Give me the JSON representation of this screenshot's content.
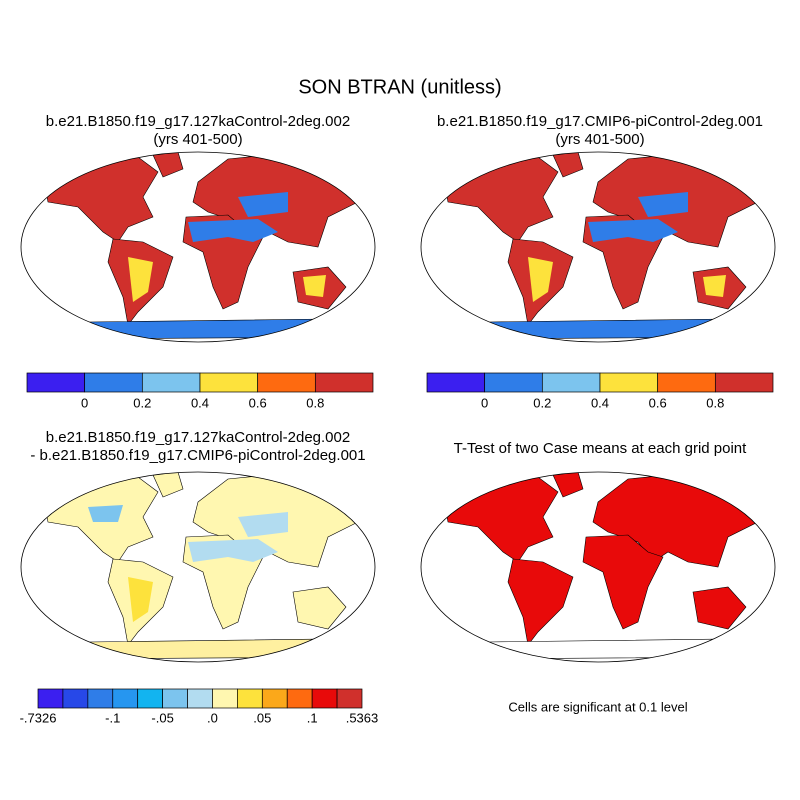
{
  "title": "SON BTRAN (unitless)",
  "panels": [
    {
      "title": [
        "b.e21.B1850.f19_g17.127kaControl-2deg.002",
        "(yrs 401-500)"
      ]
    },
    {
      "title": [
        "b.e21.B1850.f19_g17.CMIP6-piControl-2deg.001",
        "(yrs 401-500)"
      ]
    },
    {
      "title": [
        "b.e21.B1850.f19_g17.127kaControl-2deg.002",
        "- b.e21.B1850.f19_g17.CMIP6-piControl-2deg.001"
      ]
    },
    {
      "title": [
        "T-Test of two Case means at each grid point"
      ]
    }
  ],
  "colorbars": [
    {
      "colors": [
        "#3b1ff0",
        "#2f7de8",
        "#7cc4ee",
        "#fde23c",
        "#fe6a10",
        "#d0302c"
      ],
      "labels": [
        "0",
        "0.2",
        "0.4",
        "0.6",
        "0.8"
      ]
    },
    {
      "colors": [
        "#3b1ff0",
        "#2f7de8",
        "#7cc4ee",
        "#fde23c",
        "#fe6a10",
        "#d0302c"
      ],
      "labels": [
        "0",
        "0.2",
        "0.4",
        "0.6",
        "0.8"
      ]
    },
    {
      "colors": [
        "#3b1ff0",
        "#2748e8",
        "#2f7de8",
        "#2696f0",
        "#12b4f0",
        "#7cc4ee",
        "#b2dcf0",
        "#fff7b0",
        "#fde23c",
        "#fba81a",
        "#fe6a10",
        "#e80a0a",
        "#d0302c"
      ],
      "labels": [
        "-.7326",
        "-.1",
        "-.05",
        ".0",
        ".05",
        ".1",
        ".5363"
      ]
    }
  ],
  "note": "Cells are significant at 0.1 level"
}
